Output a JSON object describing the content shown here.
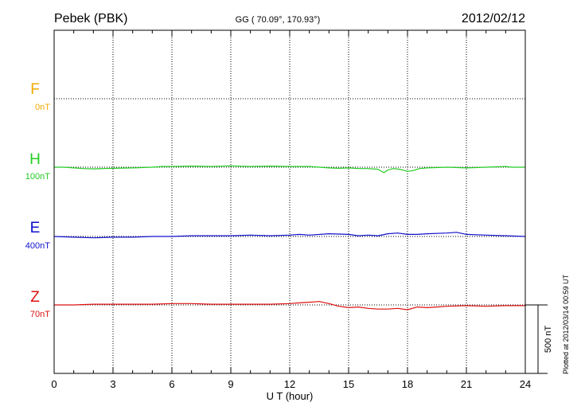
{
  "header": {
    "station": "Pebek (PBK)",
    "coords": "GG ( 70.09°, 170.93°)",
    "date": "2012/02/12"
  },
  "footer_note": "Plotted at 2012/03/14 00:59 UT",
  "chart_data": {
    "type": "line",
    "xlabel": "U T (hour)",
    "xlim": [
      0,
      24
    ],
    "x_ticks": [
      0,
      3,
      6,
      9,
      12,
      15,
      18,
      21,
      24
    ],
    "x_tick_labels": [
      "0",
      "3",
      "6",
      "9",
      "12",
      "15",
      "18",
      "21",
      "24"
    ],
    "scale_bar_label": "500 nT",
    "scale_bar_value_nT": 500,
    "grid": true,
    "series": [
      {
        "name": "F",
        "scale": "0nT",
        "color": "#f2a900",
        "x": [],
        "y": []
      },
      {
        "name": "H",
        "scale": "100nT",
        "color": "#22cc22",
        "x": [
          0,
          0.5,
          1,
          1.5,
          2,
          2.5,
          3,
          4,
          5,
          5.5,
          6,
          7,
          8,
          9,
          10,
          11,
          12,
          13,
          13.5,
          14,
          14.5,
          15,
          15.5,
          16,
          16.5,
          16.8,
          17,
          17.3,
          17.6,
          18,
          18.3,
          18.6,
          19,
          20,
          21,
          22,
          23,
          23.3,
          24
        ],
        "y": [
          0,
          0,
          -5,
          -10,
          -12,
          -10,
          -8,
          -5,
          0,
          5,
          5,
          8,
          5,
          10,
          5,
          8,
          5,
          5,
          0,
          -5,
          -8,
          -5,
          -10,
          -10,
          -15,
          -40,
          -20,
          -10,
          -15,
          -30,
          -25,
          -10,
          -5,
          0,
          -5,
          0,
          5,
          0,
          0
        ]
      },
      {
        "name": "E",
        "scale": "400nT",
        "color": "#1010cc",
        "x": [
          0,
          1,
          2,
          3,
          4,
          5,
          6,
          7,
          8,
          9,
          10,
          11,
          12,
          12.5,
          13,
          14,
          15,
          15.5,
          16,
          16.5,
          17,
          17.5,
          18,
          18.5,
          19,
          20,
          20.5,
          21,
          22,
          23,
          24
        ],
        "y": [
          0,
          -5,
          -10,
          -5,
          -5,
          0,
          0,
          5,
          5,
          5,
          10,
          5,
          10,
          15,
          10,
          20,
          15,
          5,
          10,
          5,
          20,
          25,
          15,
          15,
          20,
          25,
          30,
          15,
          10,
          5,
          0
        ]
      },
      {
        "name": "Z",
        "scale": "70nT",
        "color": "#dd1111",
        "x": [
          0,
          1,
          2,
          3,
          4,
          5,
          6,
          7,
          8,
          9,
          10,
          11,
          12,
          12.5,
          13,
          13.5,
          14,
          14.5,
          15,
          15.5,
          16,
          16.5,
          17,
          17.5,
          18,
          18.5,
          19,
          19.5,
          20,
          21,
          22,
          23,
          24
        ],
        "y": [
          0,
          0,
          5,
          5,
          5,
          5,
          10,
          10,
          5,
          5,
          5,
          5,
          10,
          15,
          20,
          25,
          10,
          -10,
          -20,
          -15,
          -25,
          -30,
          -30,
          -25,
          -35,
          -15,
          -20,
          -15,
          -10,
          -5,
          -10,
          -5,
          -5
        ]
      }
    ]
  }
}
